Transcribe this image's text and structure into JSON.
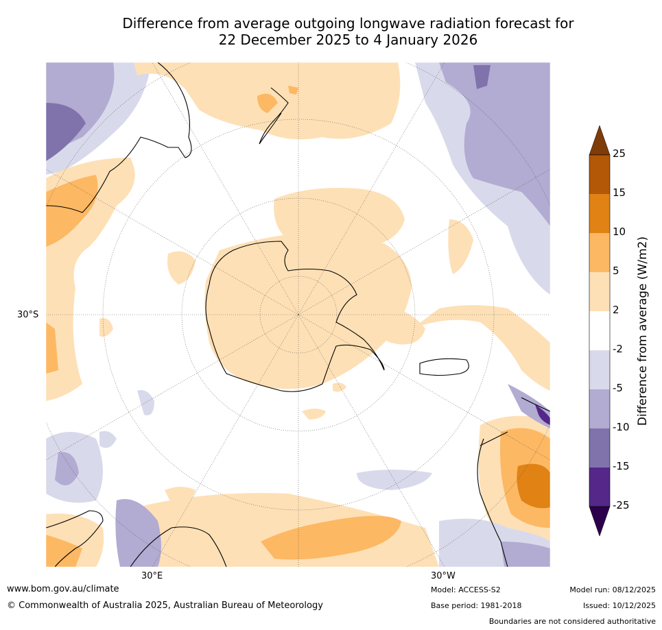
{
  "title": {
    "line1": "Difference from average outgoing longwave radiation forecast for",
    "line2": "22 December 2025 to 4 January 2026"
  },
  "axis_labels": {
    "lat": "30°S",
    "lon_east": "30°E",
    "lon_west": "30°W"
  },
  "colorbar": {
    "title": "Difference from average (W/m2)",
    "levels": [
      "25",
      "15",
      "10",
      "5",
      "2",
      "-2",
      "-5",
      "-10",
      "-15",
      "-25"
    ],
    "colors": [
      "#7f3b08",
      "#b35806",
      "#e08214",
      "#fdb863",
      "#fee0b6",
      "#ffffff",
      "#d8daeb",
      "#b2abd2",
      "#8073ac",
      "#542788",
      "#2d004b"
    ]
  },
  "footer": {
    "url": "www.bom.gov.au/climate",
    "copyright": "© Commonwealth of Australia 2025, Australian Bureau of Meteorology",
    "model": "Model: ACCESS-S2",
    "base_period": "Base period: 1981-2018",
    "model_run": "Model run: 08/12/2025",
    "issued": "Issued: 10/12/2025",
    "disclaimer": "Boundaries are not considered authoritative"
  }
}
